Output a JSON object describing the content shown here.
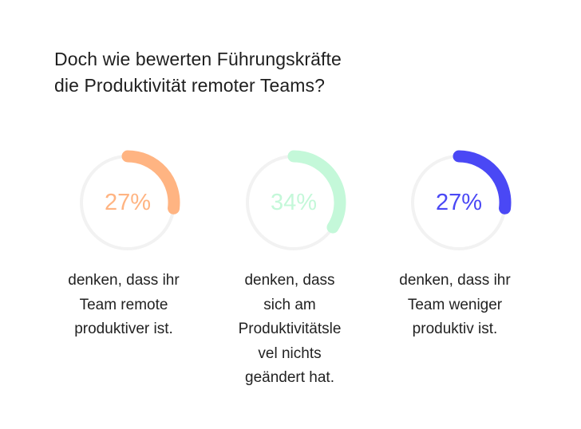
{
  "title": {
    "line1": "Doch wie bewerten Führungskräfte",
    "line2": "die Produktivität remoter Teams?"
  },
  "chart_data": {
    "type": "donut",
    "title": "Doch wie bewerten Führungskräfte die Produktivität remoter Teams?",
    "items": [
      {
        "value": 27,
        "label": "27%",
        "color": "#ffb482",
        "description": [
          "denken, dass ihr",
          "Team remote",
          "produktiver ist."
        ]
      },
      {
        "value": 34,
        "label": "34%",
        "color": "#c4f8d9",
        "description": [
          "denken, dass",
          "sich am",
          "Produktivitätsle",
          "vel nichts",
          "geändert hat."
        ]
      },
      {
        "value": 27,
        "label": "27%",
        "color": "#4a48f5",
        "description": [
          "denken, dass ihr",
          "Team weniger",
          "produktiv ist."
        ]
      }
    ],
    "track_color": "#f2f2f2"
  }
}
